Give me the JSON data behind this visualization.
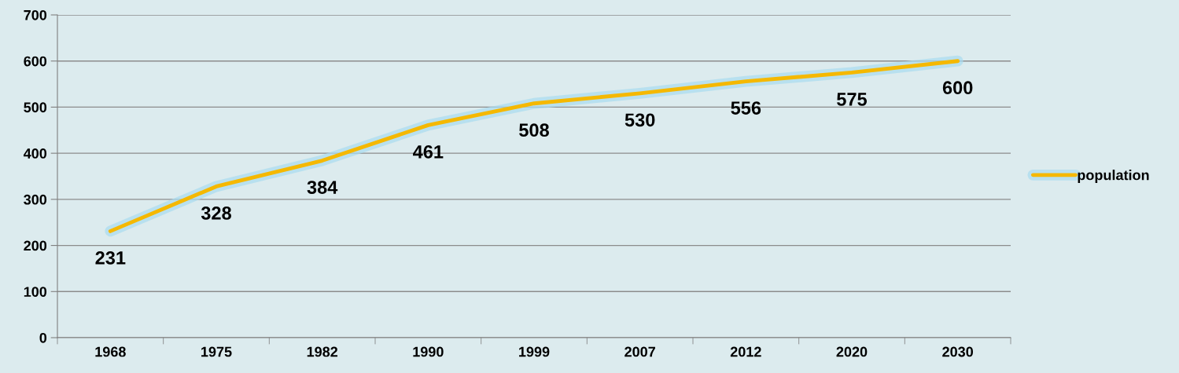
{
  "chart_data": {
    "type": "line",
    "categories": [
      "1968",
      "1975",
      "1982",
      "1990",
      "1999",
      "2007",
      "2012",
      "2020",
      "2030"
    ],
    "series": [
      {
        "name": "population",
        "color": "#f5b800",
        "values": [
          231,
          328,
          384,
          461,
          508,
          530,
          556,
          575,
          600
        ]
      }
    ],
    "ylim": [
      0,
      700
    ],
    "yticks": [
      0,
      100,
      200,
      300,
      400,
      500,
      600,
      700
    ],
    "grid": "y",
    "legend": "right",
    "data_labels": true,
    "marker": "none",
    "line_style": "solid"
  }
}
